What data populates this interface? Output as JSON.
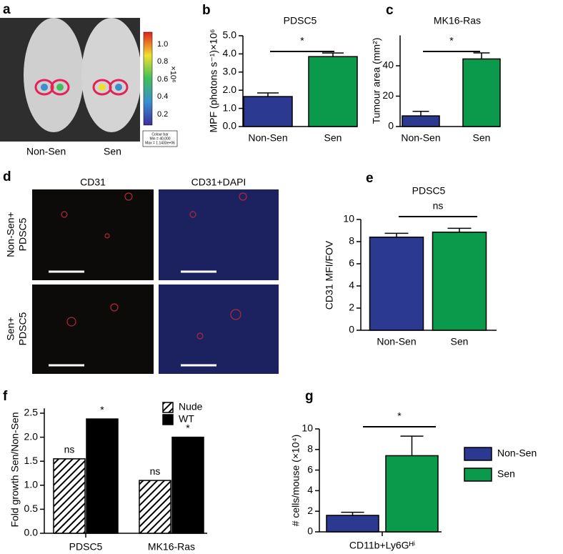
{
  "panels": {
    "a": {
      "label": "a",
      "mouse_labels": [
        "Non-Sen",
        "Sen"
      ],
      "colorbar_ticks": [
        "1.0",
        "0.8",
        "0.6",
        "0.4",
        "0.2"
      ],
      "colorbar_unit": "×10⁶",
      "colorbar_box": [
        "Colour bar",
        "Min = 40,000",
        "Max = 1.1433e+06"
      ]
    },
    "d": {
      "label": "d",
      "columns": [
        "CD31",
        "CD31+DAPI"
      ],
      "rows": [
        [
          "Non-Sen+",
          "PDSC5"
        ],
        [
          "Sen+",
          "PDSC5"
        ]
      ]
    }
  },
  "chart_data": [
    {
      "type": "bar",
      "panel_label": "b",
      "title": "PDSC5",
      "y_label": "MPF (photons s⁻¹)×10⁶",
      "categories": [
        "Non-Sen",
        "Sen"
      ],
      "values": [
        1.65,
        3.85
      ],
      "errors": [
        0.2,
        0.2
      ],
      "colors": [
        "#2b3990",
        "#0b9a4c"
      ],
      "annotation": "*",
      "ylim": [
        0,
        5
      ],
      "yticks": [
        {
          "value": 0,
          "label": "0.0"
        },
        {
          "value": 1,
          "label": "1.0"
        },
        {
          "value": 2,
          "label": "2.0"
        },
        {
          "value": 3,
          "label": "3.0"
        },
        {
          "value": 4,
          "label": "4.0"
        },
        {
          "value": 5,
          "label": "5.0"
        }
      ]
    },
    {
      "type": "bar",
      "panel_label": "c",
      "title": "MK16-Ras",
      "y_label": "Tumour area (mm²)",
      "categories": [
        "Non-Sen",
        "Sen"
      ],
      "values": [
        7,
        44.5
      ],
      "errors": [
        3,
        4
      ],
      "colors": [
        "#2b3990",
        "#0b9a4c"
      ],
      "annotation": "*",
      "ylim": [
        0,
        60
      ],
      "yticks": [
        0,
        20,
        40
      ]
    },
    {
      "type": "bar",
      "panel_label": "e",
      "title": "PDSC5",
      "y_label": "CD31 MFI/FOV",
      "categories": [
        "Non-Sen",
        "Sen"
      ],
      "values": [
        8.4,
        8.85
      ],
      "errors": [
        0.35,
        0.35
      ],
      "colors": [
        "#2b3990",
        "#0b9a4c"
      ],
      "annotation": "ns",
      "ylim": [
        0,
        10
      ],
      "yticks": [
        0,
        2,
        4,
        6,
        8,
        10
      ]
    },
    {
      "type": "grouped-bar",
      "panel_label": "f",
      "y_label": "Fold growth Sen/Non-Sen",
      "categories": [
        "PDSC5",
        "MK16-Ras"
      ],
      "legend": "top-right",
      "series": [
        {
          "name": "Nude",
          "color": "#ffffff",
          "hatch": true,
          "values": [
            1.55,
            1.1
          ],
          "labels": [
            "ns",
            "ns"
          ]
        },
        {
          "name": "WT",
          "color": "#000000",
          "values": [
            2.38,
            2.0
          ],
          "labels": [
            "*",
            "*"
          ]
        }
      ],
      "ylim": [
        0,
        2.6
      ],
      "yticks": [
        {
          "value": 0,
          "label": "0.0"
        },
        {
          "value": 0.5,
          "label": "0.5"
        },
        {
          "value": 1,
          "label": "1.0"
        },
        {
          "value": 1.5,
          "label": "1.5"
        },
        {
          "value": 2,
          "label": "2.0"
        },
        {
          "value": 2.5,
          "label": "2.5"
        }
      ]
    },
    {
      "type": "grouped-bar",
      "panel_label": "g",
      "y_label": "# cells/mouse (×10⁴)",
      "categories": [
        "CD11b+Ly6Gᴴⁱ"
      ],
      "legend": "right",
      "annotation": "*",
      "series": [
        {
          "name": "Non-Sen",
          "color": "#2b3990",
          "values": [
            1.6
          ],
          "errors": [
            0.3
          ]
        },
        {
          "name": "Sen",
          "color": "#0b9a4c",
          "values": [
            7.4
          ],
          "errors": [
            1.9
          ]
        }
      ],
      "ylim": [
        0,
        10
      ],
      "yticks": [
        0,
        2,
        4,
        6,
        8,
        10
      ]
    }
  ]
}
